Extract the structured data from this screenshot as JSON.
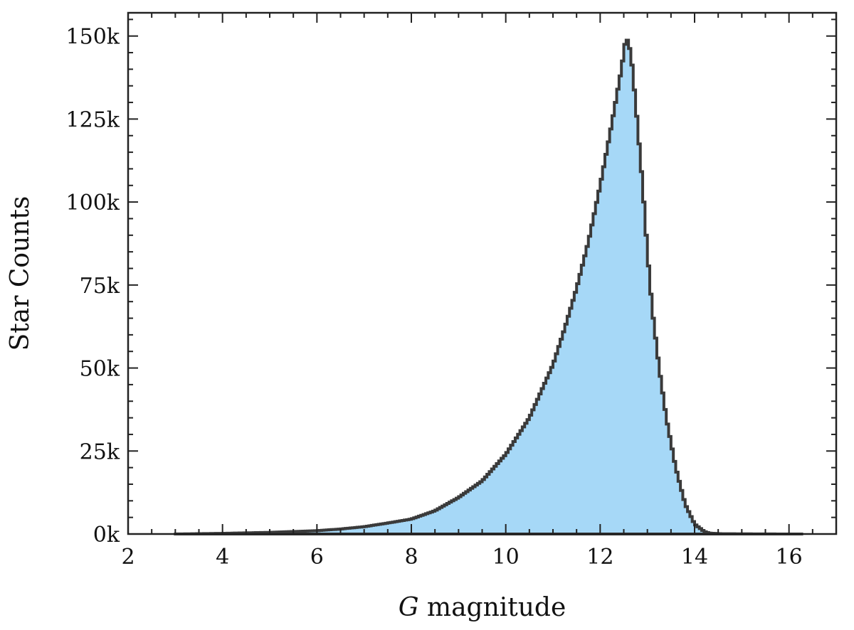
{
  "chart_data": {
    "type": "histogram",
    "title": "",
    "xlabel_italic": "G",
    "xlabel_rest": " magnitude",
    "ylabel": "Star Counts",
    "xlim": [
      2,
      17
    ],
    "ylim": [
      0,
      157000
    ],
    "x_ticks": [
      2,
      4,
      6,
      8,
      10,
      12,
      14,
      16
    ],
    "x_tick_labels": [
      "2",
      "4",
      "6",
      "8",
      "10",
      "12",
      "14",
      "16"
    ],
    "y_ticks": [
      0,
      25000,
      50000,
      75000,
      100000,
      125000,
      150000
    ],
    "y_tick_labels": [
      "0k",
      "25k",
      "50k",
      "75k",
      "100k",
      "125k",
      "150k"
    ],
    "grid": false,
    "fill_color": "#a6d8f7",
    "edge_color": "#3a3a3a",
    "series": [
      {
        "x": [
          3.0,
          4.0,
          5.0,
          6.0,
          6.5,
          7.0,
          7.5,
          8.0,
          8.5,
          9.0,
          9.5,
          10.0,
          10.5,
          11.0,
          11.25,
          11.5,
          11.75,
          12.0,
          12.2,
          12.35,
          12.45,
          12.55,
          12.65,
          12.75,
          12.9,
          13.0,
          13.1,
          13.25,
          13.4,
          13.6,
          13.8,
          14.0,
          14.2,
          14.3,
          14.5,
          15.0,
          16.0,
          16.3
        ],
        "y": [
          0,
          200,
          500,
          1000,
          1500,
          2200,
          3300,
          4500,
          7000,
          11000,
          16000,
          24000,
          35000,
          51000,
          62000,
          74000,
          88000,
          105000,
          120000,
          132000,
          140000,
          150000,
          145000,
          130000,
          105000,
          85000,
          68000,
          50000,
          35000,
          20000,
          9000,
          3000,
          800,
          300,
          100,
          50,
          0,
          0
        ]
      }
    ]
  }
}
